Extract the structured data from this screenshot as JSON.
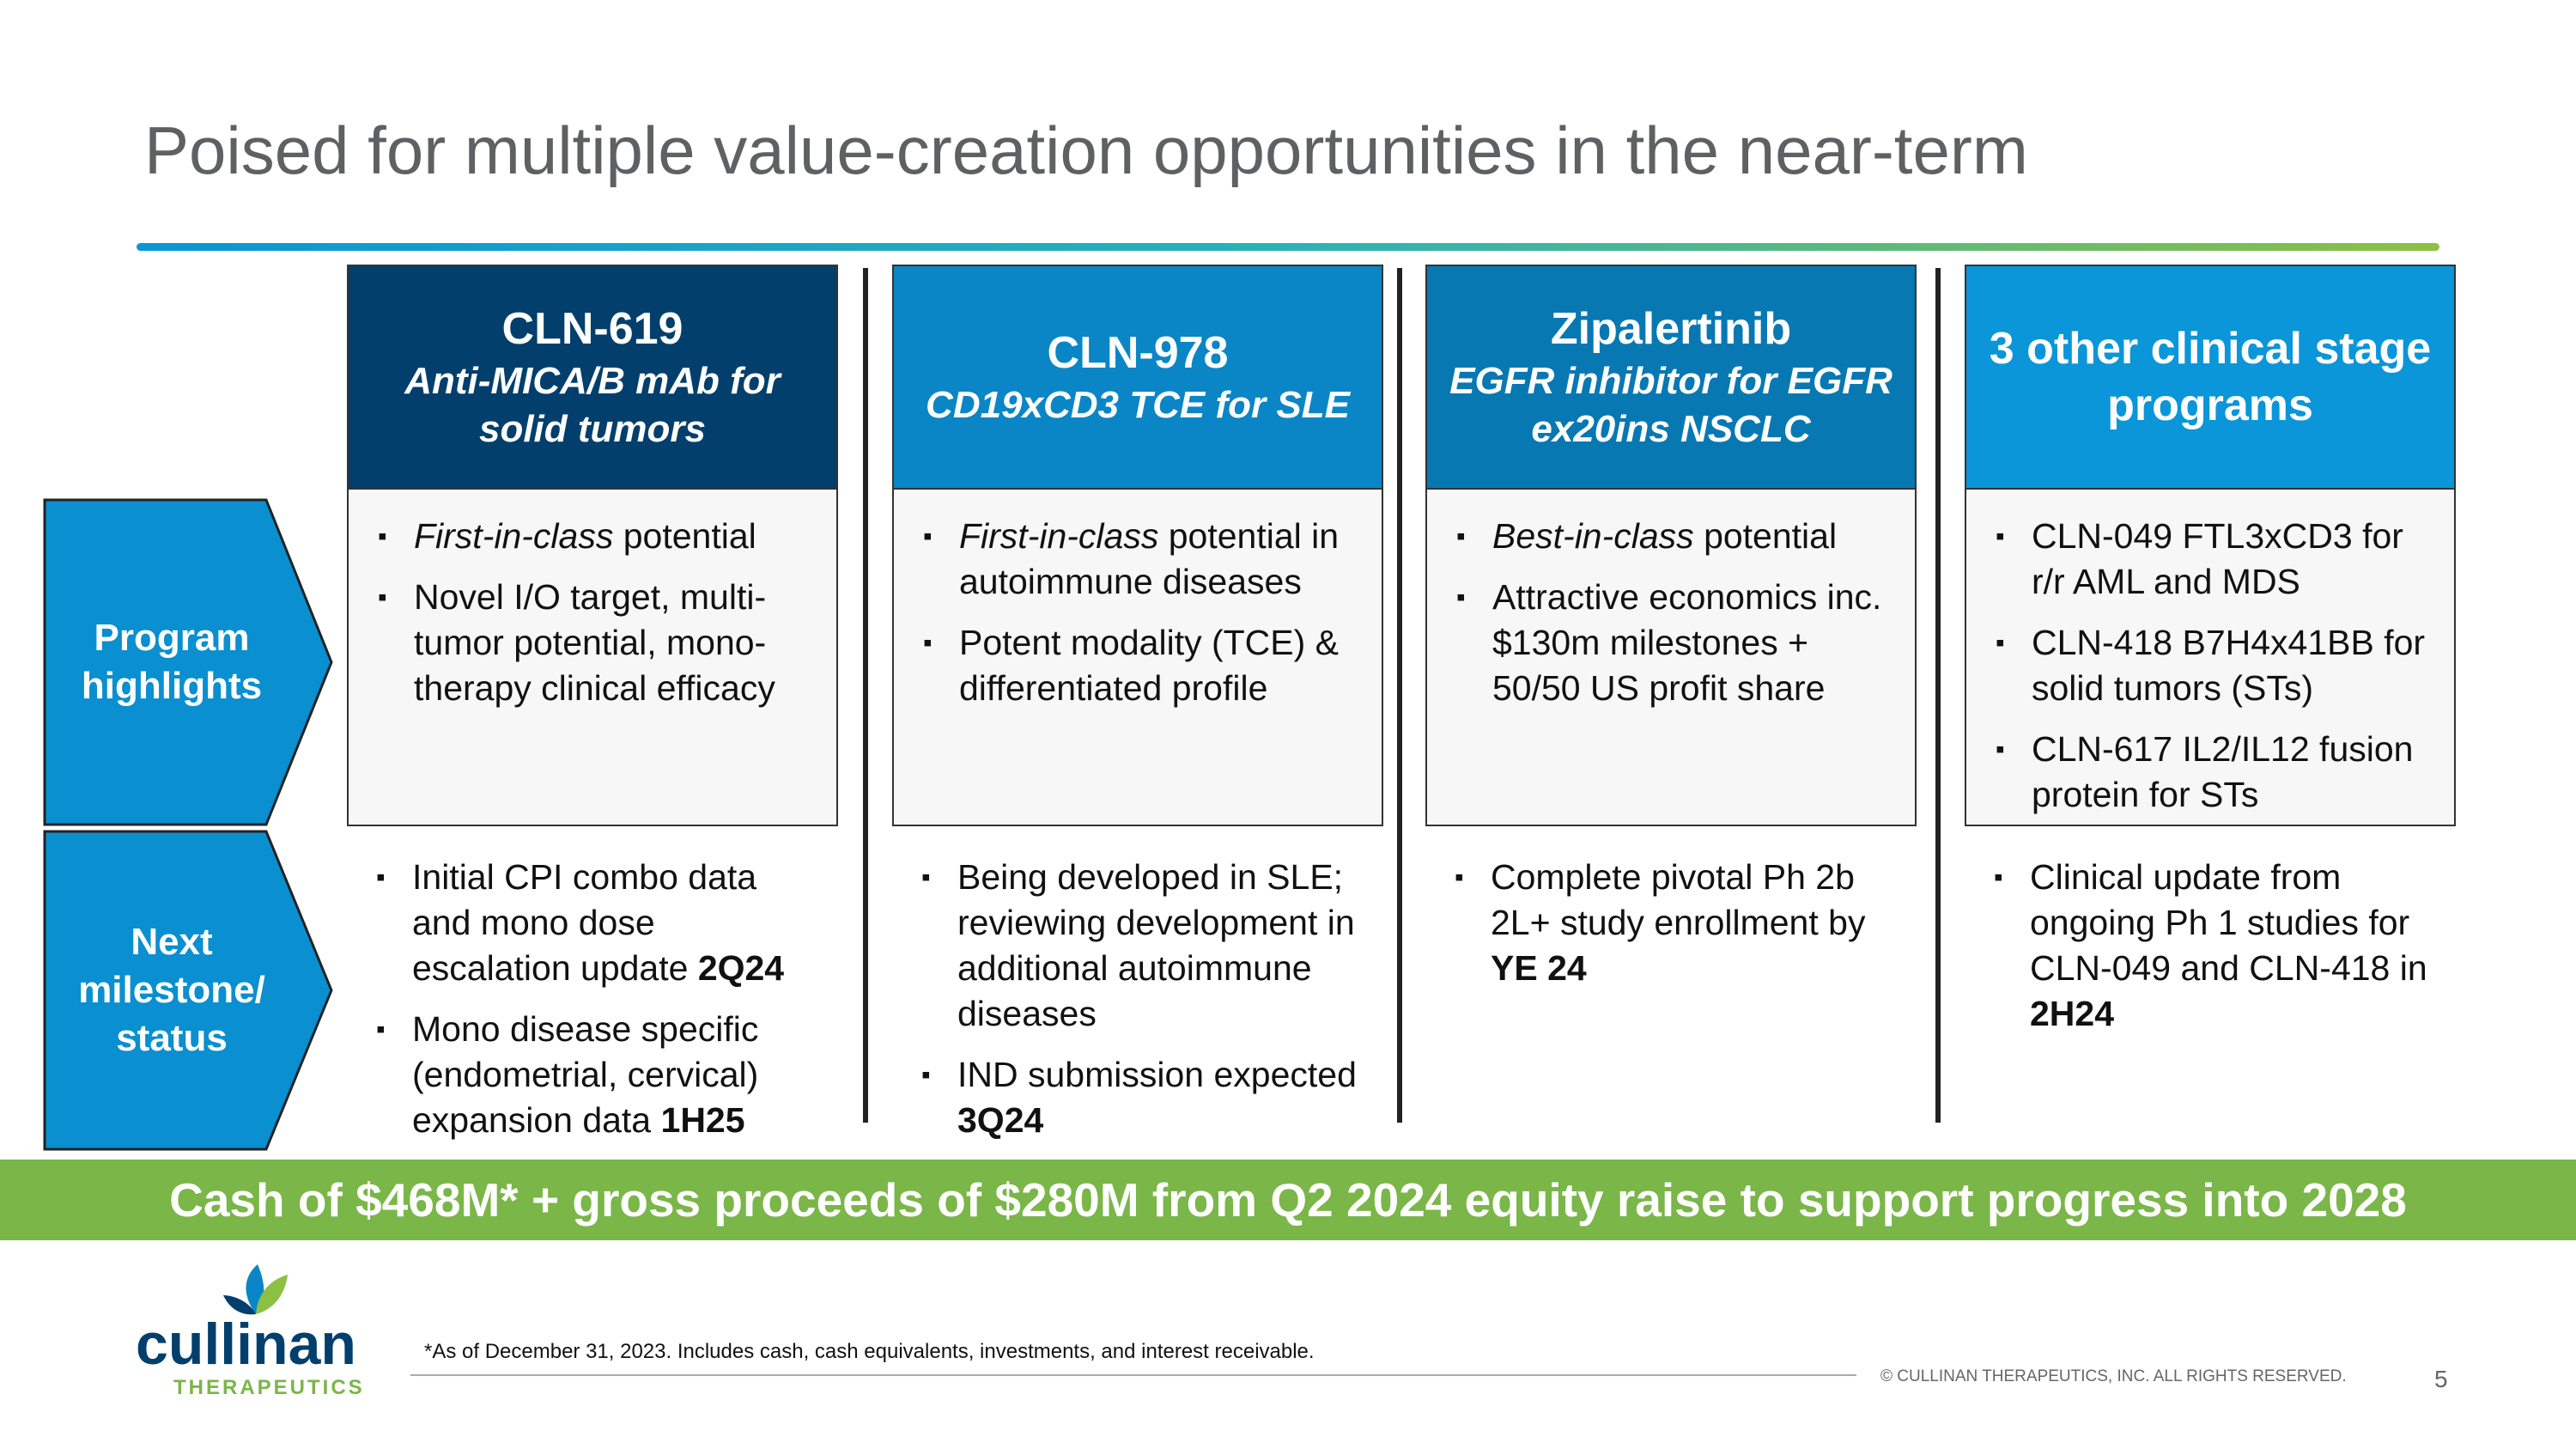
{
  "header": {
    "title": "Poised for multiple value-creation opportunities in the near-term"
  },
  "row_labels": [
    "Program highlights",
    "Next milestone/ status"
  ],
  "columns": [
    {
      "name": "CLN-619",
      "subtitle": "Anti-MICA/B mAb for solid tumors",
      "color": "#023f6c",
      "highlights": [
        [
          {
            "text": "First-in-class",
            "style": "italic"
          },
          {
            "text": " potential"
          }
        ],
        [
          {
            "text": "Novel I/O target, multi-tumor potential, mono-therapy clinical efficacy"
          }
        ]
      ],
      "milestones": [
        [
          {
            "text": "Initial CPI combo data and mono dose escalation update "
          },
          {
            "text": "2Q24",
            "style": "bold"
          }
        ],
        [
          {
            "text": "Mono disease specific (endometrial, cervical) expansion data "
          },
          {
            "text": "1H25",
            "style": "bold"
          }
        ]
      ]
    },
    {
      "name": "CLN-978",
      "subtitle": "CD19xCD3 TCE for SLE",
      "color": "#0a86c6",
      "highlights": [
        [
          {
            "text": "First-in-class",
            "style": "italic"
          },
          {
            "text": " potential in autoimmune diseases"
          }
        ],
        [
          {
            "text": "Potent modality (TCE) & differentiated profile"
          }
        ]
      ],
      "milestones": [
        [
          {
            "text": "Being developed in SLE; reviewing development in additional autoimmune diseases"
          }
        ],
        [
          {
            "text": "IND submission expected "
          },
          {
            "text": "3Q24",
            "style": "bold"
          }
        ]
      ]
    },
    {
      "name": "Zipalertinib",
      "subtitle": "EGFR inhibitor for EGFR ex20ins NSCLC",
      "color": "#0878b3",
      "highlights": [
        [
          {
            "text": "Best-in-class",
            "style": "italic"
          },
          {
            "text": " potential"
          }
        ],
        [
          {
            "text": "Attractive economics inc. $130m milestones + 50/50 US profit share"
          }
        ]
      ],
      "milestones": [
        [
          {
            "text": "Complete pivotal Ph 2b 2L+ study enrollment by "
          },
          {
            "text": "YE 24",
            "style": "bold"
          }
        ]
      ]
    },
    {
      "name": "3 other clinical stage programs",
      "color": "#0a96d9",
      "highlights": [
        [
          {
            "text": "CLN-049 FTL3xCD3 for r/r AML and MDS"
          }
        ],
        [
          {
            "text": "CLN-418 B7H4x41BB for solid tumors (STs)"
          }
        ],
        [
          {
            "text": "CLN-617 IL2/IL12 fusion protein for STs"
          }
        ]
      ],
      "milestones": [
        [
          {
            "text": "Clinical update from ongoing Ph 1 studies for CLN-049 and CLN-418 in "
          },
          {
            "text": "2H24",
            "style": "bold"
          }
        ]
      ]
    }
  ],
  "banner": "Cash of $468M* + gross proceeds of $280M from Q2 2024 equity raise to support progress into 2028",
  "footnote": "*As of  December 31, 2023. Includes cash, cash equivalents, investments, and interest receivable.",
  "copyright": "© CULLINAN THERAPEUTICS, INC. ALL RIGHTS RESERVED.",
  "page_number": "5",
  "logo": {
    "name": "cullinan",
    "tagline": "THERAPEUTICS"
  }
}
